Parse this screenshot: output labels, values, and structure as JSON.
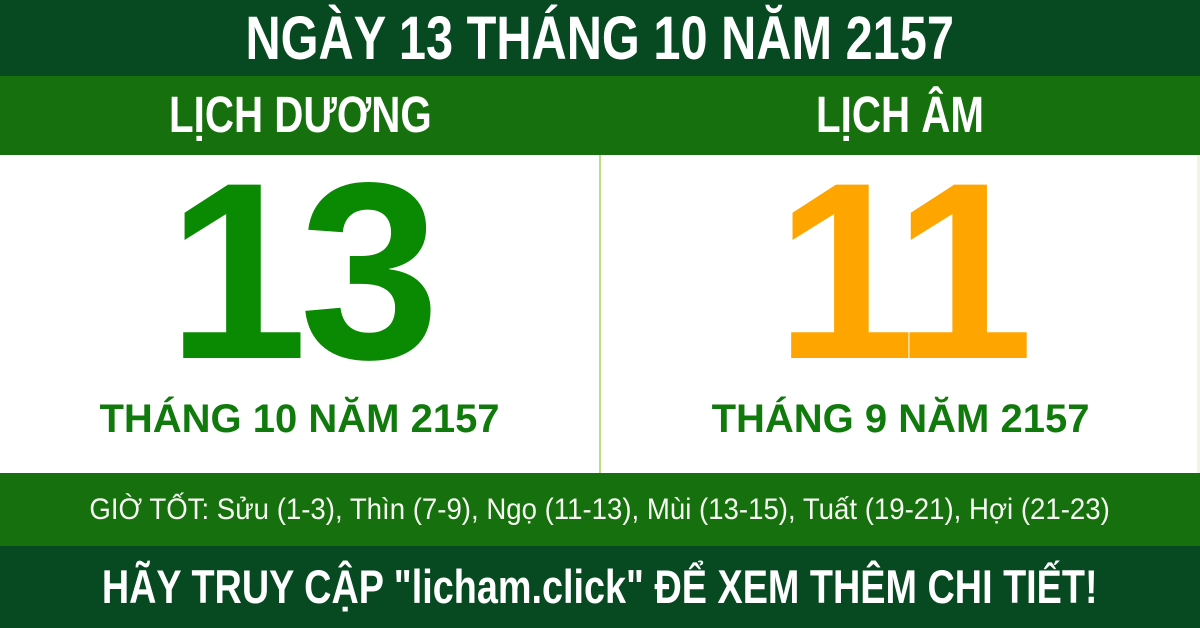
{
  "header": {
    "title": "NGÀY 13 THÁNG 10 NĂM 2157"
  },
  "calendar": {
    "solar": {
      "label": "LỊCH DƯƠNG",
      "day": "13",
      "month_year": "THÁNG 10 NĂM 2157"
    },
    "lunar": {
      "label": "LỊCH ÂM",
      "day": "11",
      "month_year": "THÁNG 9 NĂM 2157"
    }
  },
  "good_hours": {
    "text": "GIỜ TỐT: Sửu (1-3), Thìn (7-9), Ngọ (11-13), Mùi (13-15), Tuất (19-21), Hợi (21-23)"
  },
  "footer": {
    "text": "HÃY TRUY CẬP \"licham.click\" ĐỂ XEM THÊM CHI TIẾT!"
  },
  "colors": {
    "dark_green": "#074a21",
    "band_green": "#16700d",
    "solar_day_green": "#098a02",
    "lunar_day_orange": "#ffa500",
    "month_text_green": "#117a0c",
    "divider_light_green": "#b9de83",
    "text_white": "#ffffff"
  }
}
